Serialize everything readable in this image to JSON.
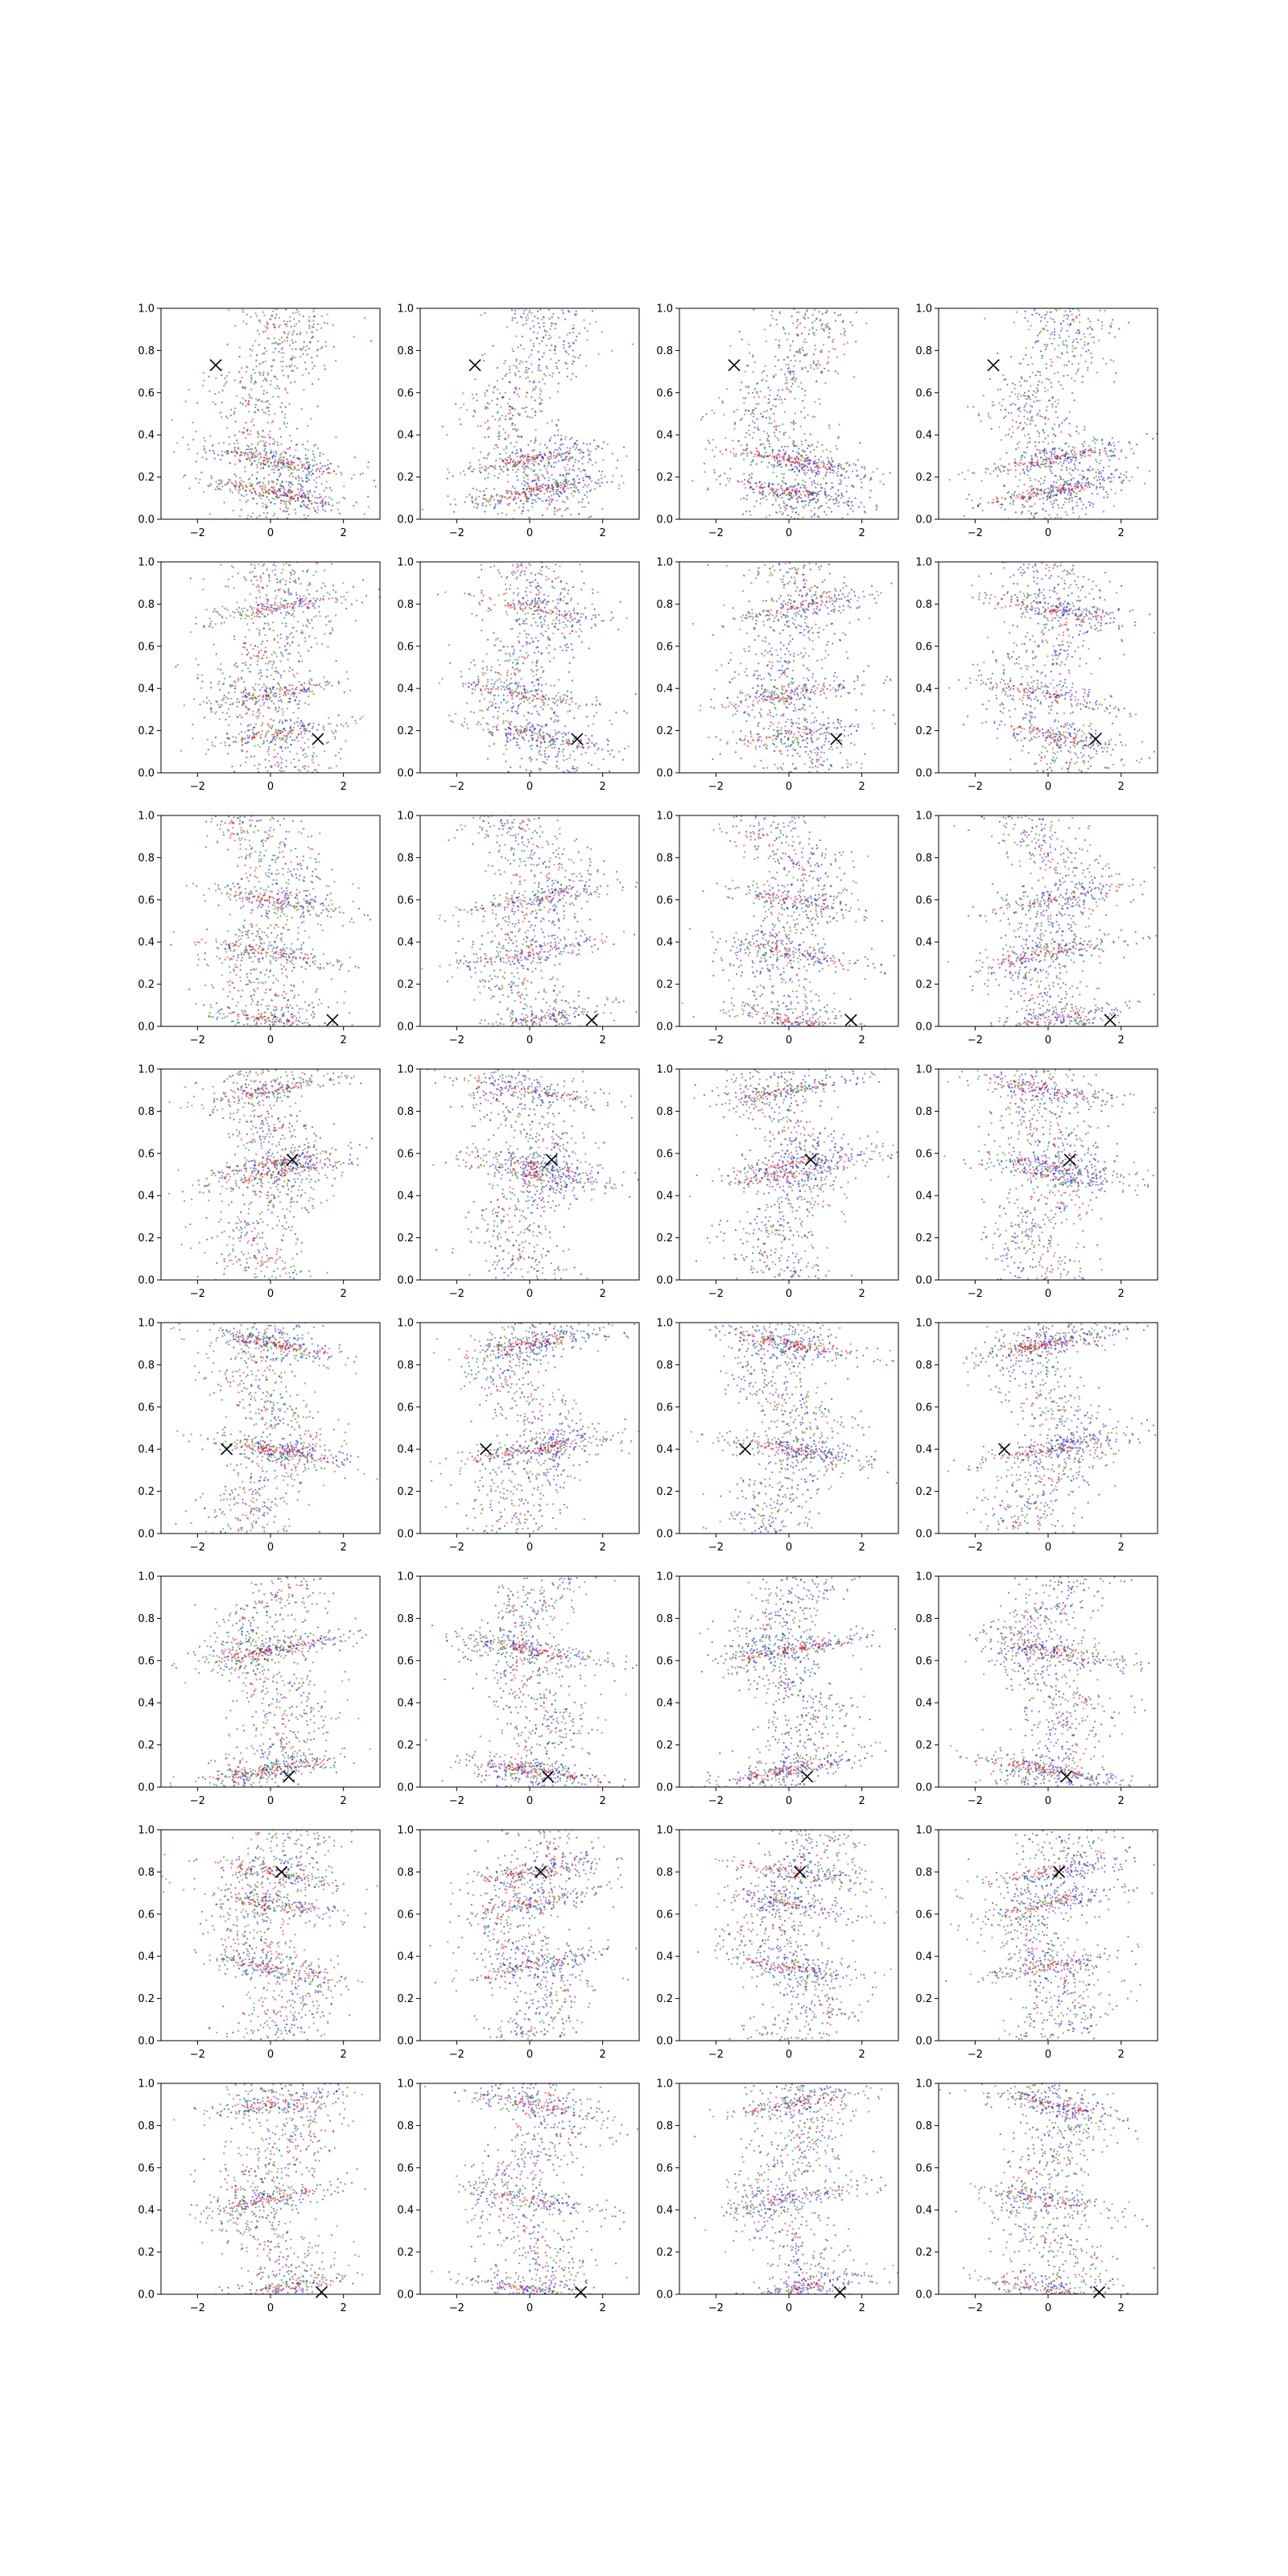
{
  "figure": {
    "rows": 8,
    "cols": 4,
    "xlim": [
      -3,
      3
    ],
    "ylim": [
      0,
      1
    ],
    "x_ticks": [
      -2,
      0,
      2
    ],
    "x_tick_labels": [
      "−2",
      "0",
      "2"
    ],
    "y_ticks": [
      0,
      0.2,
      0.4,
      0.6,
      0.8,
      1.0
    ],
    "y_tick_labels": [
      "0.0",
      "0.2",
      "0.4",
      "0.6",
      "0.8",
      "1.0"
    ],
    "colors": {
      "blue": "#0000ff",
      "green": "#008000",
      "red": "#ff0000",
      "marker": "#000000"
    }
  },
  "chart_data": {
    "type": "scatter",
    "xlim": [
      -3,
      3
    ],
    "ylim": [
      0,
      1
    ],
    "grid": false,
    "legend": "none",
    "series_colors": [
      "blue",
      "green",
      "red"
    ],
    "markers": [
      {
        "row": 0,
        "x": -1.5,
        "y": 0.73
      },
      {
        "row": 1,
        "x": 1.3,
        "y": 0.16
      },
      {
        "row": 2,
        "x": 1.7,
        "y": 0.03
      },
      {
        "row": 3,
        "x": 0.6,
        "y": 0.57
      },
      {
        "row": 4,
        "x": -1.2,
        "y": 0.4
      },
      {
        "row": 5,
        "x": 0.5,
        "y": 0.05
      },
      {
        "row": 6,
        "x": 0.3,
        "y": 0.8
      },
      {
        "row": 7,
        "x": 1.4,
        "y": 0.01
      }
    ],
    "band_centers": [
      [
        0.13,
        0.28
      ],
      [
        0.18,
        0.37,
        0.78
      ],
      [
        0.03,
        0.35,
        0.6
      ],
      [
        0.5,
        0.55,
        0.9
      ],
      [
        0.4,
        0.9
      ],
      [
        0.08,
        0.65
      ],
      [
        0.35,
        0.65,
        0.8
      ],
      [
        0.02,
        0.45,
        0.9
      ]
    ]
  }
}
